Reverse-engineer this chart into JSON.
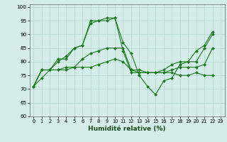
{
  "xlabel": "Humidité relative (%)",
  "xlim": [
    -0.5,
    23.5
  ],
  "ylim": [
    60,
    101
  ],
  "yticks": [
    60,
    65,
    70,
    75,
    80,
    85,
    90,
    95,
    100
  ],
  "xticks": [
    0,
    1,
    2,
    3,
    4,
    5,
    6,
    7,
    8,
    9,
    10,
    11,
    12,
    13,
    14,
    15,
    16,
    17,
    18,
    19,
    20,
    21,
    22,
    23
  ],
  "background_color": "#d4ede8",
  "grid_color": "#b0d4cc",
  "line_color": "#1a7a1a",
  "lines": [
    [
      71,
      74,
      77,
      81,
      81,
      85,
      86,
      94,
      95,
      95,
      96,
      87,
      83,
      75,
      71,
      68,
      73,
      74,
      79,
      80,
      84,
      86,
      91
    ],
    [
      71,
      77,
      77,
      80,
      82,
      85,
      86,
      95,
      95,
      96,
      96,
      84,
      76,
      76,
      76,
      76,
      77,
      79,
      80,
      80,
      80,
      85,
      90
    ],
    [
      71,
      77,
      77,
      77,
      78,
      78,
      81,
      83,
      84,
      85,
      85,
      85,
      77,
      77,
      76,
      76,
      76,
      77,
      78,
      78,
      78,
      79,
      85
    ],
    [
      71,
      77,
      77,
      77,
      77,
      78,
      78,
      78,
      79,
      80,
      81,
      80,
      77,
      76,
      76,
      76,
      76,
      76,
      75,
      75,
      76,
      75,
      75
    ]
  ]
}
